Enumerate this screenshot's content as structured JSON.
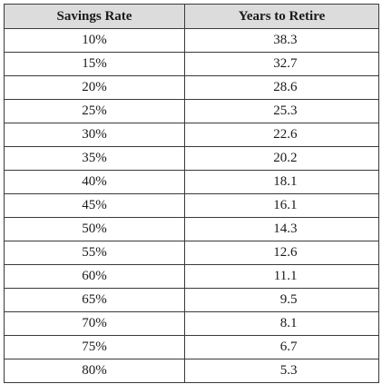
{
  "table": {
    "headers": [
      "Savings Rate",
      "Years to Retire"
    ],
    "rows": [
      {
        "rate": "10%",
        "years": "38.3"
      },
      {
        "rate": "15%",
        "years": "32.7"
      },
      {
        "rate": "20%",
        "years": "28.6"
      },
      {
        "rate": "25%",
        "years": "25.3"
      },
      {
        "rate": "30%",
        "years": "22.6"
      },
      {
        "rate": "35%",
        "years": "20.2"
      },
      {
        "rate": "40%",
        "years": "18.1"
      },
      {
        "rate": "45%",
        "years": "16.1"
      },
      {
        "rate": "50%",
        "years": "14.3"
      },
      {
        "rate": "55%",
        "years": "12.6"
      },
      {
        "rate": "60%",
        "years": "11.1"
      },
      {
        "rate": "65%",
        "years": "9.5"
      },
      {
        "rate": "70%",
        "years": "8.1"
      },
      {
        "rate": "75%",
        "years": "6.7"
      },
      {
        "rate": "80%",
        "years": "5.3"
      }
    ]
  },
  "colors": {
    "header_background": "#dcdcdc",
    "border": "#3a3a3a"
  }
}
